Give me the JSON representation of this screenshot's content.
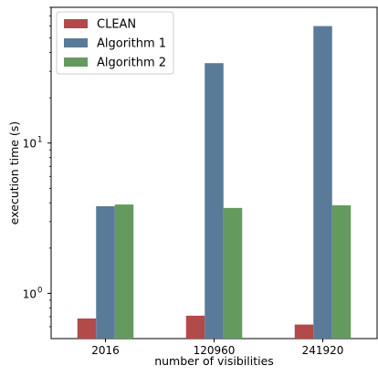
{
  "chart_data": {
    "type": "bar",
    "log_scale_y": true,
    "xlabel": "number of visibilities",
    "ylabel": "execution time (s)",
    "categories": [
      "2016",
      "120960",
      "241920"
    ],
    "series": [
      {
        "name": "CLEAN",
        "color": "#b34a4a",
        "values": [
          0.68,
          0.71,
          0.62
        ]
      },
      {
        "name": "Algorithm 1",
        "color": "#5a7a99",
        "values": [
          3.8,
          34,
          60
        ]
      },
      {
        "name": "Algorithm 2",
        "color": "#649a5e",
        "values": [
          3.9,
          3.7,
          3.85
        ]
      }
    ],
    "y_ticks": [
      {
        "value": 1,
        "label": "10^0"
      },
      {
        "value": 10,
        "label": "10^1"
      }
    ],
    "ylim": [
      0.5,
      80
    ],
    "legend_position": "top-left",
    "grid": false
  }
}
